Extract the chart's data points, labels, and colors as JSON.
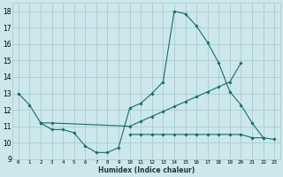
{
  "xlabel": "Humidex (Indice chaleur)",
  "bg_color": "#cce8ec",
  "grid_color": "#aacccc",
  "line_color": "#1a6b6b",
  "xlim": [
    -0.5,
    23.5
  ],
  "ylim": [
    9,
    18.5
  ],
  "xticks": [
    0,
    1,
    2,
    3,
    4,
    5,
    6,
    7,
    8,
    9,
    10,
    11,
    12,
    13,
    14,
    15,
    16,
    17,
    18,
    19,
    20,
    21,
    22,
    23
  ],
  "yticks": [
    9,
    10,
    11,
    12,
    13,
    14,
    15,
    16,
    17,
    18
  ],
  "line1_x": [
    0,
    1,
    2,
    3,
    4,
    5,
    6,
    7,
    8,
    9,
    10,
    11,
    12,
    13,
    14,
    15,
    16,
    17,
    18,
    19,
    20,
    21,
    22
  ],
  "line1_y": [
    13.0,
    12.3,
    11.2,
    10.8,
    10.8,
    10.6,
    9.8,
    9.4,
    9.4,
    9.7,
    12.1,
    12.4,
    13.0,
    13.7,
    18.0,
    17.85,
    17.1,
    16.1,
    14.85,
    13.1,
    12.3,
    11.2,
    10.3
  ],
  "line2_x": [
    2,
    3,
    10,
    11,
    12,
    13,
    14,
    15,
    16,
    17,
    18,
    19,
    20
  ],
  "line2_y": [
    11.2,
    11.2,
    11.0,
    11.3,
    11.6,
    11.9,
    12.2,
    12.5,
    12.8,
    13.1,
    13.4,
    13.7,
    14.85
  ],
  "line3_x": [
    10,
    11,
    12,
    13,
    14,
    15,
    16,
    17,
    18,
    19,
    20,
    21,
    22,
    23
  ],
  "line3_y": [
    10.5,
    10.5,
    10.5,
    10.5,
    10.5,
    10.5,
    10.5,
    10.5,
    10.5,
    10.5,
    10.5,
    10.3,
    10.3,
    10.2
  ]
}
